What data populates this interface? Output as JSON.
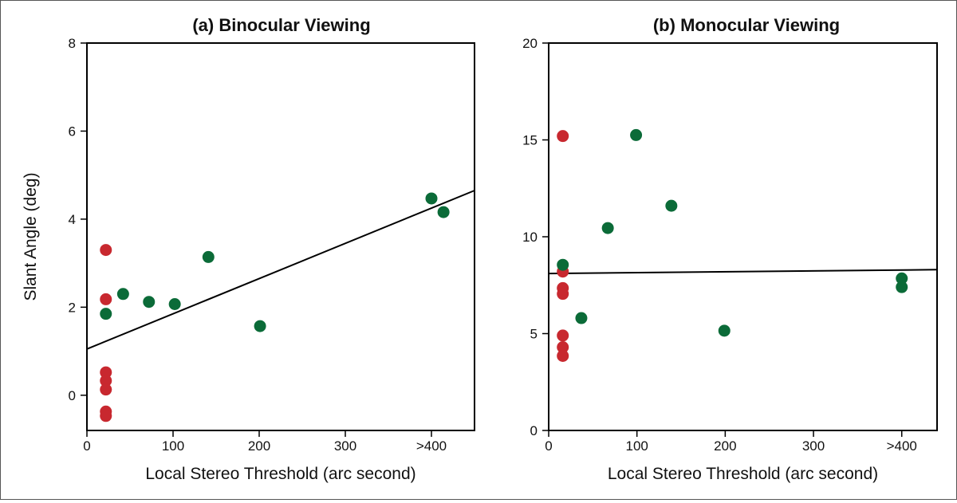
{
  "colors": {
    "red": "#c8282f",
    "green": "#0b6b38",
    "axis": "#000000",
    "text": "#111111"
  },
  "chart_data": [
    {
      "type": "scatter",
      "title": "(a) Binocular Viewing",
      "xlabel": "Local Stereo Threshold (arc second)",
      "ylabel": "Slant Angle (deg)",
      "xlim": [
        0,
        450
      ],
      "ylim": [
        -0.8,
        8
      ],
      "xticks": [
        0,
        100,
        200,
        300,
        400
      ],
      "xtick_labels": [
        "0",
        "100",
        "200",
        "300",
        ">400"
      ],
      "yticks": [
        0,
        2,
        4,
        6,
        8
      ],
      "ytick_labels": [
        "0",
        "2",
        "4",
        "6",
        "8"
      ],
      "series": [
        {
          "name": "red",
          "color": "#c8282f",
          "points": [
            [
              22,
              3.3
            ],
            [
              22,
              2.18
            ],
            [
              22,
              0.52
            ],
            [
              22,
              0.33
            ],
            [
              22,
              0.13
            ],
            [
              22,
              -0.37
            ],
            [
              22,
              -0.47
            ]
          ]
        },
        {
          "name": "green",
          "color": "#0b6b38",
          "points": [
            [
              22,
              1.85
            ],
            [
              42,
              2.3
            ],
            [
              72,
              2.12
            ],
            [
              102,
              2.07
            ],
            [
              141,
              3.14
            ],
            [
              201,
              1.57
            ],
            [
              400,
              4.47
            ],
            [
              414,
              4.16
            ]
          ]
        }
      ],
      "fit_line": {
        "x": [
          0,
          450
        ],
        "y": [
          1.05,
          4.65
        ]
      }
    },
    {
      "type": "scatter",
      "title": "(b) Monocular Viewing",
      "xlabel": "Local Stereo Threshold (arc second)",
      "ylabel": "",
      "xlim": [
        0,
        440
      ],
      "ylim": [
        0,
        20
      ],
      "xticks": [
        0,
        100,
        200,
        300,
        400
      ],
      "xtick_labels": [
        "0",
        "100",
        "200",
        "300",
        ">400"
      ],
      "yticks": [
        0,
        5,
        10,
        15,
        20
      ],
      "ytick_labels": [
        "0",
        "5",
        "10",
        "15",
        "20"
      ],
      "series": [
        {
          "name": "red",
          "color": "#c8282f",
          "points": [
            [
              16,
              15.2
            ],
            [
              16,
              8.2
            ],
            [
              16,
              7.35
            ],
            [
              16,
              7.05
            ],
            [
              16,
              4.9
            ],
            [
              16,
              4.3
            ],
            [
              16,
              3.85
            ]
          ]
        },
        {
          "name": "green",
          "color": "#0b6b38",
          "points": [
            [
              16,
              8.55
            ],
            [
              37,
              5.8
            ],
            [
              67,
              10.45
            ],
            [
              99,
              15.25
            ],
            [
              139,
              11.6
            ],
            [
              199,
              5.15
            ],
            [
              400,
              7.85
            ],
            [
              400,
              7.4
            ]
          ]
        }
      ],
      "fit_line": {
        "x": [
          0,
          440
        ],
        "y": [
          8.1,
          8.3
        ]
      }
    }
  ]
}
